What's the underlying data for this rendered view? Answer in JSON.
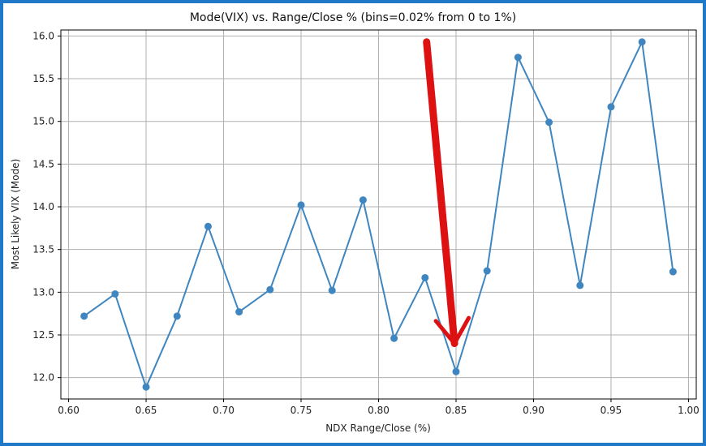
{
  "chart_data": {
    "type": "line",
    "title": "Mode(VIX) vs. Range/Close % (bins=0.02% from 0 to 1%)",
    "xlabel": "NDX Range/Close (%)",
    "ylabel": "Most Likely VIX (Mode)",
    "xlim": [
      0.595,
      1.005
    ],
    "ylim": [
      11.75,
      16.07
    ],
    "xticks": [
      0.6,
      0.65,
      0.7,
      0.75,
      0.8,
      0.85,
      0.9,
      0.95,
      1.0
    ],
    "xtick_labels": [
      "0.60",
      "0.65",
      "0.70",
      "0.75",
      "0.80",
      "0.85",
      "0.90",
      "0.95",
      "1.00"
    ],
    "yticks": [
      12.0,
      12.5,
      13.0,
      13.5,
      14.0,
      14.5,
      15.0,
      15.5,
      16.0
    ],
    "ytick_labels": [
      "12.0",
      "12.5",
      "13.0",
      "13.5",
      "14.0",
      "14.5",
      "15.0",
      "15.5",
      "16.0"
    ],
    "grid": true,
    "series": [
      {
        "color": "#3f86c0",
        "marker": "circle",
        "x": [
          0.61,
          0.63,
          0.65,
          0.67,
          0.69,
          0.71,
          0.73,
          0.75,
          0.77,
          0.79,
          0.81,
          0.83,
          0.85,
          0.87,
          0.89,
          0.91,
          0.93,
          0.95,
          0.97,
          0.99
        ],
        "y": [
          12.72,
          12.98,
          11.89,
          12.72,
          13.77,
          12.77,
          13.03,
          14.02,
          13.02,
          14.08,
          12.46,
          13.17,
          12.07,
          13.25,
          15.75,
          14.99,
          13.08,
          15.17,
          15.93,
          13.24
        ]
      }
    ],
    "annotations": [
      {
        "type": "arrow",
        "color": "#dd1111",
        "from": [
          0.831,
          15.93
        ],
        "to": [
          0.849,
          12.4
        ]
      }
    ]
  }
}
